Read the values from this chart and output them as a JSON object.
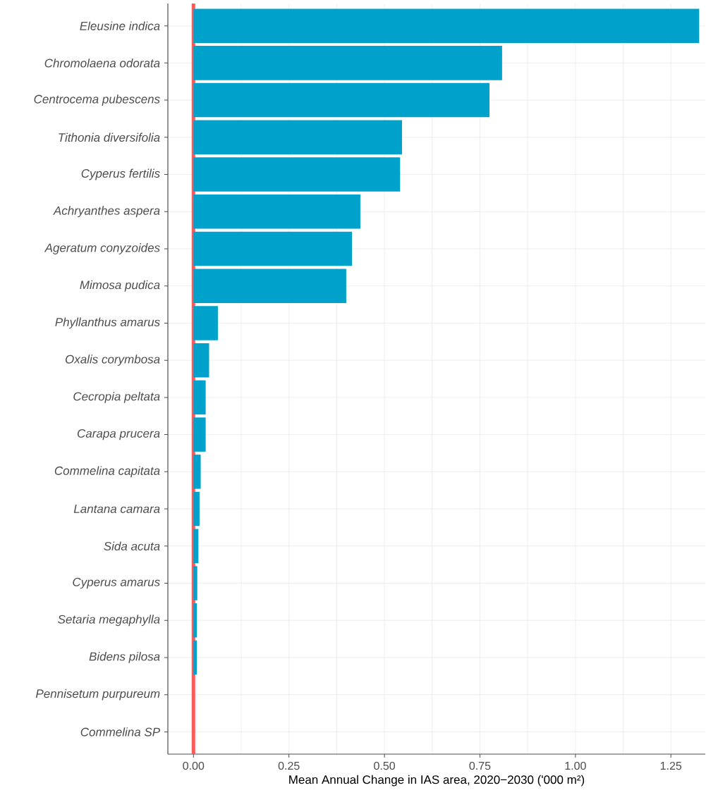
{
  "chart_data": {
    "type": "bar",
    "orientation": "horizontal",
    "xlabel": "Mean Annual Change in IAS area, 2020−2030 ('000 m²)",
    "categories": [
      "*Eleusine indica*",
      "*Chromolaena odorata*",
      "*Centrocema pubescens*",
      "*Tithonia diversifolia*",
      "*Cyperus fertilis*",
      "*Achryanthes aspera*",
      "*Ageratum conyzoides*",
      "*Mimosa pudica*",
      "*Phyllanthus amarus*",
      "*Oxalis corymbosa*",
      "*Cecropia peltata*",
      "*Carapa prucera*",
      "*Commelina capitata*",
      "*Lantana camara*",
      "*Sida acuta*",
      "*Cyperus amarus*",
      "*Setaria megaphylla*",
      "*Bidens pilosa*",
      "*Pennisetum purpureum*",
      "*Commelina* SP"
    ],
    "values": [
      1.324,
      0.808,
      0.775,
      0.546,
      0.541,
      0.437,
      0.415,
      0.4,
      0.064,
      0.041,
      0.032,
      0.032,
      0.019,
      0.016,
      0.013,
      0.01,
      0.009,
      0.009,
      0,
      0
    ],
    "color": "#00a2cb",
    "xlim": [
      -0.067,
      1.34
    ],
    "xticks": [
      {
        "value": 0,
        "label": "0.00"
      },
      {
        "value": 0.25,
        "label": "0.25"
      },
      {
        "value": 0.5,
        "label": "0.50"
      },
      {
        "value": 0.75,
        "label": "0.75"
      },
      {
        "value": 1,
        "label": "1.00"
      },
      {
        "value": 1.25,
        "label": "1.25"
      }
    ],
    "ref_lines": [
      {
        "axis": "x",
        "value": 0,
        "color": "#fa5a5a"
      }
    ],
    "grid": true
  }
}
